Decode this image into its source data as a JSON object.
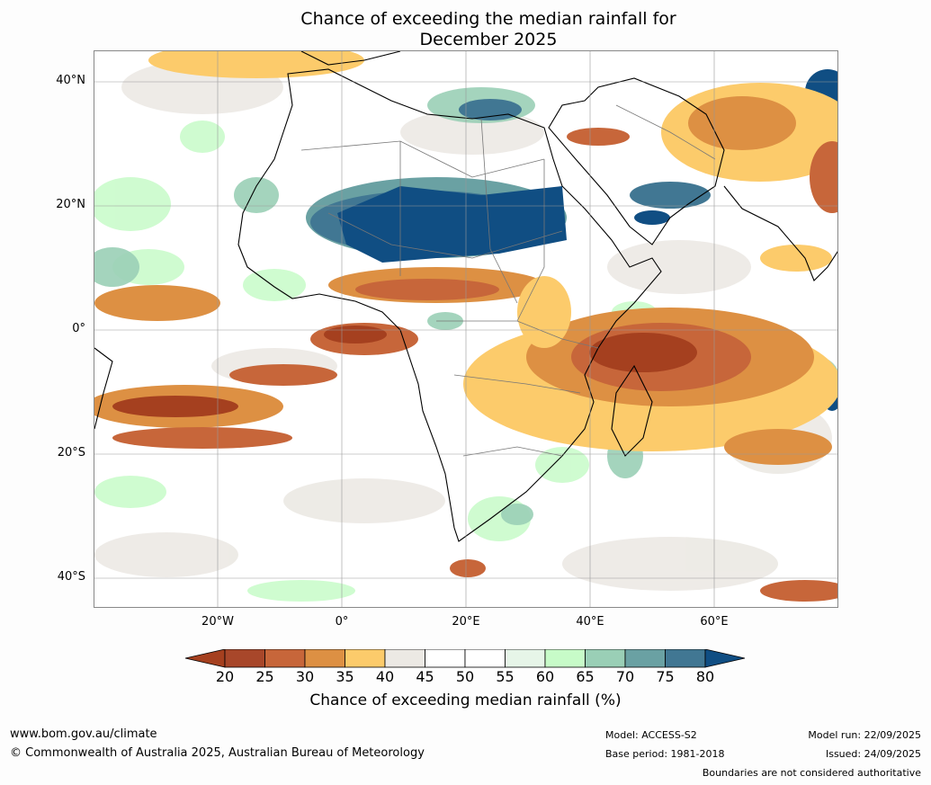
{
  "title": {
    "line1": "Chance of exceeding the median rainfall for",
    "line2": "December 2025"
  },
  "map": {
    "lat_labels": [
      "40°N",
      "20°N",
      "0°",
      "20°S",
      "40°S"
    ],
    "lon_labels": [
      "20°W",
      "0°",
      "20°E",
      "40°E",
      "60°E"
    ],
    "region": "Africa, Middle East and western Indian Ocean"
  },
  "colorbar": {
    "ticks": [
      "20",
      "25",
      "30",
      "35",
      "40",
      "45",
      "50",
      "55",
      "60",
      "65",
      "70",
      "75",
      "80"
    ],
    "colors": [
      "#a5401f",
      "#a8472a",
      "#c7663a",
      "#dd9043",
      "#fccb6b",
      "#ece9e4",
      "#ffffff",
      "#ffffff",
      "#e6f5e8",
      "#c7fbc8",
      "#9acfb6",
      "#6aa1a3",
      "#417793",
      "#104e83"
    ],
    "label": "Chance of exceeding median rainfall (%)"
  },
  "footer": {
    "url": "www.bom.gov.au/climate",
    "copyright": "© Commonwealth of Australia 2025, Australian Bureau of Meteorology",
    "model": "Model: ACCESS-S2",
    "base_period": "Base period: 1981-2018",
    "model_run": "Model run: 22/09/2025",
    "issued": "Issued: 24/09/2025",
    "disclaimer": "Boundaries are not considered authoritative"
  }
}
